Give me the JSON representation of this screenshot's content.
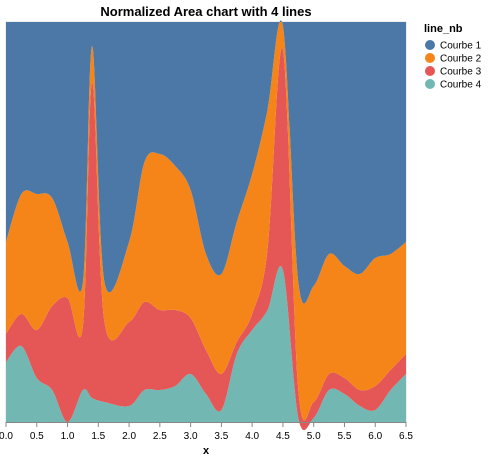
{
  "chart_data": {
    "type": "area",
    "stack": "normalize",
    "title": "Normalized Area chart with 4 lines",
    "xlabel": "x",
    "ylabel": "",
    "xlim": [
      0,
      6.5
    ],
    "ylim": [
      0,
      1
    ],
    "x_ticks": [
      "0.0",
      "0.5",
      "1.0",
      "1.5",
      "2.0",
      "2.5",
      "3.0",
      "3.5",
      "4.0",
      "4.5",
      "5.0",
      "5.5",
      "6.0",
      "6.5"
    ],
    "x_tick_values": [
      0,
      0.5,
      1,
      1.5,
      2,
      2.5,
      3,
      3.5,
      4,
      4.5,
      5,
      5.5,
      6,
      6.5
    ],
    "grid": false,
    "legend_title": "line_nb",
    "legend_position": "right",
    "x": [
      0,
      0.25,
      0.5,
      0.75,
      1.0,
      1.25,
      1.4,
      1.6,
      2.0,
      2.25,
      2.5,
      2.75,
      3.0,
      3.25,
      3.5,
      3.75,
      4.0,
      4.25,
      4.5,
      4.75,
      5.0,
      5.25,
      5.5,
      5.75,
      6.0,
      6.25,
      6.5
    ],
    "series": [
      {
        "name": "Courbe 1",
        "color": "#4c78a8",
        "share": [
          0.55,
          0.43,
          0.43,
          0.44,
          0.55,
          0.65,
          0.06,
          0.65,
          0.55,
          0.35,
          0.33,
          0.36,
          0.42,
          0.58,
          0.63,
          0.5,
          0.38,
          0.22,
          0.01,
          0.65,
          0.66,
          0.58,
          0.61,
          0.63,
          0.59,
          0.58,
          0.55
        ]
      },
      {
        "name": "Courbe 2",
        "color": "#f58518",
        "share": [
          0.23,
          0.3,
          0.34,
          0.27,
          0.14,
          0.11,
          0.09,
          0.1,
          0.2,
          0.35,
          0.39,
          0.36,
          0.32,
          0.24,
          0.25,
          0.3,
          0.35,
          0.35,
          0.06,
          0.27,
          0.29,
          0.3,
          0.28,
          0.29,
          0.32,
          0.29,
          0.28
        ]
      },
      {
        "name": "Courbe 3",
        "color": "#e45756",
        "share": [
          0.07,
          0.08,
          0.12,
          0.21,
          0.31,
          0.16,
          0.79,
          0.2,
          0.21,
          0.22,
          0.2,
          0.19,
          0.14,
          0.11,
          0.09,
          0.03,
          0.04,
          0.15,
          0.55,
          0.07,
          0.04,
          0.04,
          0.04,
          0.04,
          0.06,
          0.05,
          0.05
        ]
      },
      {
        "name": "Courbe 4",
        "color": "#72b7b2",
        "share": [
          0.15,
          0.19,
          0.11,
          0.08,
          0.0,
          0.08,
          0.06,
          0.05,
          0.04,
          0.08,
          0.08,
          0.09,
          0.12,
          0.07,
          0.03,
          0.17,
          0.23,
          0.28,
          0.38,
          0.01,
          0.01,
          0.08,
          0.07,
          0.04,
          0.03,
          0.08,
          0.12
        ]
      }
    ]
  }
}
